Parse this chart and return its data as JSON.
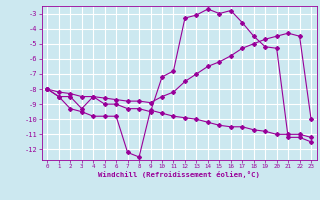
{
  "xlabel": "Windchill (Refroidissement éolien,°C)",
  "background_color": "#cce8f0",
  "grid_color": "#ffffff",
  "line_color": "#990099",
  "xlim": [
    -0.5,
    23.5
  ],
  "ylim": [
    -12.7,
    -2.5
  ],
  "yticks": [
    -12,
    -11,
    -10,
    -9,
    -8,
    -7,
    -6,
    -5,
    -4,
    -3
  ],
  "xticks": [
    0,
    1,
    2,
    3,
    4,
    5,
    6,
    7,
    8,
    9,
    10,
    11,
    12,
    13,
    14,
    15,
    16,
    17,
    18,
    19,
    20,
    21,
    22,
    23
  ],
  "s1_x": [
    0,
    1,
    2,
    3,
    4,
    5,
    6,
    7,
    8,
    9,
    10,
    11,
    12,
    13,
    14,
    15,
    16,
    17,
    18,
    19,
    20,
    21,
    22,
    23
  ],
  "s1_y": [
    -8.0,
    -8.5,
    -8.5,
    -9.3,
    -8.5,
    -9.0,
    -9.0,
    -9.3,
    -9.3,
    -9.5,
    -7.2,
    -6.8,
    -3.3,
    -3.1,
    -2.7,
    -3.0,
    -2.8,
    -3.6,
    -4.5,
    -5.2,
    -5.3,
    -11.2,
    -11.2,
    -11.5
  ],
  "s2_x": [
    0,
    1,
    2,
    3,
    4,
    5,
    6,
    7,
    8,
    9,
    10,
    11,
    12,
    13,
    14,
    15,
    16,
    17,
    18,
    19,
    20,
    21,
    22,
    23
  ],
  "s2_y": [
    -8.0,
    -8.2,
    -8.3,
    -8.5,
    -8.5,
    -8.6,
    -8.7,
    -8.8,
    -8.8,
    -8.9,
    -8.5,
    -8.2,
    -7.5,
    -7.0,
    -6.5,
    -6.2,
    -5.8,
    -5.3,
    -5.0,
    -4.7,
    -4.5,
    -4.3,
    -4.5,
    -10.0
  ],
  "s3_x": [
    0,
    1,
    2,
    3,
    4,
    5,
    6,
    7,
    8,
    9,
    10,
    11,
    12,
    13,
    14,
    15,
    16,
    17,
    18,
    19,
    20,
    21,
    22,
    23
  ],
  "s3_y": [
    -8.0,
    -8.5,
    -9.3,
    -9.5,
    -9.8,
    -9.8,
    -9.8,
    -12.2,
    -12.5,
    -9.4,
    -9.6,
    -9.8,
    -9.9,
    -10.0,
    -10.2,
    -10.4,
    -10.5,
    -10.5,
    -10.7,
    -10.8,
    -11.0,
    -11.0,
    -11.0,
    -11.2
  ]
}
